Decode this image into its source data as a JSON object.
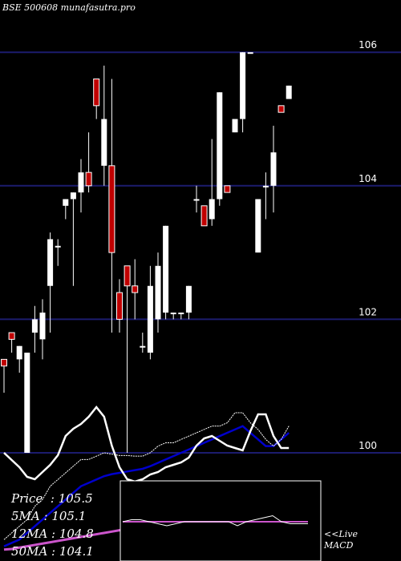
{
  "header": {
    "symbol": "BSE 500608",
    "site": "munafasutra.pro"
  },
  "stats": {
    "price_label": "Price",
    "price": "105.5",
    "ma5_label": "5MA",
    "ma5": "105.1",
    "ma12_label": "12MA",
    "ma12": "104.8",
    "ma50_label": "50MA",
    "ma50": "104.1"
  },
  "macd_label": {
    "line1": "<<Live",
    "line2": "MACD"
  },
  "colors": {
    "up": "#ffffff",
    "down": "#c00000",
    "grid": "#1c1c6e",
    "ma_white": "#ffffff",
    "ma_blue": "#0000cc",
    "ma_magenta": "#cc55cc",
    "macd": "#ffffff",
    "signal": "#cc55cc"
  },
  "chart_data": {
    "type": "candlestick",
    "y_ticks": [
      100,
      102,
      104,
      106
    ],
    "ylim": [
      99.95,
      106.5
    ],
    "candles": [
      {
        "o": 101.4,
        "c": 101.3,
        "h": 101.4,
        "l": 100.9
      },
      {
        "o": 101.8,
        "c": 101.7,
        "h": 101.8,
        "l": 101.5
      },
      {
        "o": 101.4,
        "c": 101.6,
        "h": 101.6,
        "l": 101.2
      },
      {
        "o": 100.0,
        "c": 101.5,
        "h": 101.5,
        "l": 100.0
      },
      {
        "o": 101.8,
        "c": 102.0,
        "h": 102.2,
        "l": 101.5
      },
      {
        "o": 101.7,
        "c": 102.1,
        "h": 102.3,
        "l": 101.4
      },
      {
        "o": 102.5,
        "c": 103.2,
        "h": 103.3,
        "l": 101.8
      },
      {
        "o": 103.1,
        "c": 103.1,
        "h": 103.2,
        "l": 102.8
      },
      {
        "o": 103.7,
        "c": 103.8,
        "h": 103.8,
        "l": 103.5
      },
      {
        "o": 103.8,
        "c": 103.9,
        "h": 103.9,
        "l": 102.5
      },
      {
        "o": 103.9,
        "c": 104.2,
        "h": 104.4,
        "l": 103.6
      },
      {
        "o": 104.2,
        "c": 104.0,
        "h": 104.8,
        "l": 103.9
      },
      {
        "o": 105.6,
        "c": 105.2,
        "h": 105.6,
        "l": 105.0
      },
      {
        "o": 104.3,
        "c": 105.0,
        "h": 105.8,
        "l": 104.0
      },
      {
        "o": 104.3,
        "c": 103.0,
        "h": 105.6,
        "l": 101.8
      },
      {
        "o": 102.4,
        "c": 102.0,
        "h": 102.6,
        "l": 101.8
      },
      {
        "o": 102.8,
        "c": 102.5,
        "h": 102.8,
        "l": 100.0
      },
      {
        "o": 102.5,
        "c": 102.4,
        "h": 102.9,
        "l": 102.0
      },
      {
        "o": 101.6,
        "c": 101.6,
        "h": 101.8,
        "l": 101.5
      },
      {
        "o": 101.5,
        "c": 102.5,
        "h": 102.8,
        "l": 101.4
      },
      {
        "o": 102.0,
        "c": 102.8,
        "h": 103.0,
        "l": 101.8
      },
      {
        "o": 102.1,
        "c": 103.4,
        "h": 103.4,
        "l": 102.0
      },
      {
        "o": 102.1,
        "c": 102.1,
        "h": 102.1,
        "l": 102.0
      },
      {
        "o": 102.1,
        "c": 102.1,
        "h": 102.1,
        "l": 102.0
      },
      {
        "o": 102.1,
        "c": 102.5,
        "h": 102.5,
        "l": 102.0
      },
      {
        "o": 103.8,
        "c": 103.8,
        "h": 104.0,
        "l": 103.6
      },
      {
        "o": 103.7,
        "c": 103.4,
        "h": 103.7,
        "l": 103.4
      },
      {
        "o": 103.5,
        "c": 103.8,
        "h": 104.7,
        "l": 103.4
      },
      {
        "o": 103.8,
        "c": 105.4,
        "h": 105.4,
        "l": 103.7
      },
      {
        "o": 104.0,
        "c": 103.9,
        "h": 104.0,
        "l": 103.9
      },
      {
        "o": 104.8,
        "c": 105.0,
        "h": 105.0,
        "l": 104.8
      },
      {
        "o": 105.0,
        "c": 106.0,
        "h": 106.0,
        "l": 104.8
      },
      {
        "o": 106.0,
        "c": 106.0,
        "h": 106.0,
        "l": 106.0
      },
      {
        "o": 103.0,
        "c": 103.8,
        "h": 103.8,
        "l": 103.0
      },
      {
        "o": 104.0,
        "c": 104.0,
        "h": 104.2,
        "l": 103.5
      },
      {
        "o": 104.0,
        "c": 104.5,
        "h": 104.9,
        "l": 103.6
      },
      {
        "o": 105.2,
        "c": 105.1,
        "h": 105.2,
        "l": 105.1
      },
      {
        "o": 105.3,
        "c": 105.5,
        "h": 105.5,
        "l": 105.3
      }
    ],
    "ma_white": [
      98.7,
      98.8,
      98.9,
      99.0,
      99.2,
      99.3,
      99.5,
      99.6,
      99.7,
      99.8,
      99.9,
      99.9,
      99.95,
      100.0,
      99.98,
      99.96,
      99.96,
      99.95,
      99.95,
      100.0,
      100.1,
      100.15,
      100.15,
      100.2,
      100.25,
      100.3,
      100.35,
      100.4,
      100.4,
      100.45,
      100.6,
      100.6,
      100.45,
      100.35,
      100.2,
      100.1,
      100.2,
      100.4
    ],
    "ma_blue": [
      98.6,
      98.65,
      98.7,
      98.8,
      98.9,
      99.0,
      99.1,
      99.2,
      99.3,
      99.4,
      99.5,
      99.55,
      99.6,
      99.65,
      99.68,
      99.7,
      99.72,
      99.74,
      99.76,
      99.8,
      99.85,
      99.9,
      99.95,
      100.0,
      100.05,
      100.1,
      100.15,
      100.2,
      100.25,
      100.3,
      100.35,
      100.4,
      100.3,
      100.2,
      100.1,
      100.1,
      100.2,
      100.3
    ],
    "ma_magenta": [
      98.55,
      98.56,
      98.58,
      98.6,
      98.62,
      98.64,
      98.66,
      98.68,
      98.7,
      98.72,
      98.74,
      98.76,
      98.78,
      98.8,
      98.82,
      98.84,
      98.86,
      98.88,
      98.9,
      98.92,
      98.94,
      98.96,
      98.98,
      99.0,
      99.02,
      99.04,
      99.06,
      99.08,
      99.1,
      99.12,
      99.14,
      99.16,
      99.18,
      99.2,
      99.22,
      99.24,
      99.26,
      99.28
    ],
    "macd_line": [
      0.0,
      -0.3,
      -0.6,
      -1.0,
      -1.1,
      -0.8,
      -0.5,
      -0.1,
      0.7,
      1.0,
      1.2,
      1.5,
      1.9,
      1.5,
      0.3,
      -0.6,
      -1.1,
      -1.2,
      -1.1,
      -0.9,
      -0.8,
      -0.6,
      -0.5,
      -0.4,
      -0.2,
      0.3,
      0.6,
      0.7,
      0.5,
      0.3,
      0.2,
      0.1,
      0.9,
      1.6,
      1.6,
      0.7,
      0.2,
      0.2
    ],
    "macd_signal": [
      -0.5,
      -0.5,
      -0.5,
      -0.5,
      -0.5,
      -0.5,
      -0.5,
      -0.5,
      -0.5,
      -0.5,
      -0.5,
      -0.5,
      -0.5,
      -0.5,
      -0.5,
      -0.5,
      -0.5,
      -0.5,
      -0.5,
      -0.5,
      -0.5,
      -0.5,
      -0.5,
      -0.5,
      -0.5,
      -0.5,
      -0.5,
      -0.5,
      -0.5,
      -0.5,
      -0.5,
      -0.5,
      -0.5,
      -0.5,
      -0.5,
      -0.5,
      -0.5,
      -0.5
    ],
    "live_macd": [
      0.0,
      0.1,
      0.1,
      0.0,
      -0.1,
      -0.2,
      -0.1,
      0.0,
      0.0,
      0.0,
      0.0,
      0.0,
      0.0,
      -0.2,
      0.0,
      0.1,
      0.2,
      0.3,
      0.0,
      -0.1,
      -0.1,
      -0.1
    ],
    "live_signal": [
      0.0,
      0.0,
      0.0,
      0.0,
      0.0,
      0.0,
      0.0,
      0.0,
      0.0,
      0.0,
      0.0,
      0.0,
      0.0,
      0.0,
      0.0,
      0.0,
      0.0,
      0.0,
      0.0,
      0.0,
      0.0,
      0.0
    ]
  }
}
